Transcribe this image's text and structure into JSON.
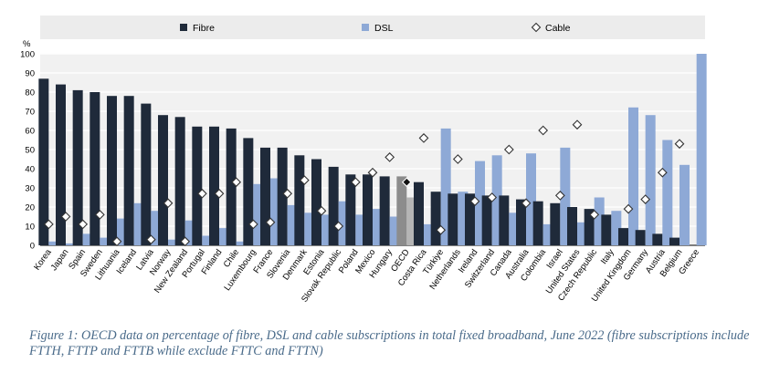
{
  "chart_data": {
    "type": "bar",
    "title": "",
    "y_unit_label": "%",
    "ylim": [
      0,
      100
    ],
    "yticks": [
      0,
      10,
      20,
      30,
      40,
      50,
      60,
      70,
      80,
      90,
      100
    ],
    "grid": "horizontal",
    "legend_position": "top",
    "categories": [
      "Korea",
      "Japan",
      "Spain",
      "Sweden",
      "Lithuania",
      "Iceland",
      "Latvia",
      "Norway",
      "New Zealand",
      "Portugal",
      "Finland",
      "Chile",
      "Luxembourg",
      "France",
      "Slovenia",
      "Denmark",
      "Estonia",
      "Slovak Republic",
      "Poland",
      "Mexico",
      "Hungary",
      "OECD",
      "Costa Rica",
      "Türkiye",
      "Netherlands",
      "Ireland",
      "Switzerland",
      "Canada",
      "Australia",
      "Colombia",
      "Israel",
      "United States",
      "Czech Republic",
      "Italy",
      "United Kingdom",
      "Germany",
      "Austria",
      "Belgium",
      "Greece"
    ],
    "highlight_category": "OECD",
    "series": [
      {
        "name": "Fibre",
        "type": "bar",
        "color": "#1f2a3a",
        "highlight_color": "#8c8c8c",
        "values": [
          87,
          84,
          81,
          80,
          78,
          78,
          74,
          68,
          67,
          62,
          62,
          61,
          56,
          51,
          51,
          47,
          45,
          41,
          37,
          37,
          36,
          36,
          33,
          28,
          27,
          27,
          26,
          26,
          24,
          23,
          22,
          20,
          19,
          16,
          9,
          8,
          6,
          4,
          0
        ]
      },
      {
        "name": "DSL",
        "type": "bar",
        "color": "#8ea9d6",
        "highlight_color": "#b5b5b5",
        "values": [
          2,
          1,
          6,
          4,
          14,
          22,
          18,
          3,
          13,
          5,
          9,
          2,
          32,
          35,
          21,
          17,
          16,
          23,
          16,
          19,
          15,
          25,
          11,
          61,
          28,
          44,
          47,
          17,
          48,
          11,
          51,
          12,
          25,
          18,
          72,
          68,
          55,
          42,
          100
        ]
      },
      {
        "name": "Cable",
        "type": "marker",
        "color": "#ffffff",
        "values": [
          11,
          15,
          11,
          16,
          2,
          null,
          3,
          22,
          2,
          27,
          27,
          33,
          11,
          12,
          27,
          34,
          18,
          10,
          33,
          38,
          46,
          33,
          56,
          8,
          45,
          23,
          25,
          50,
          22,
          60,
          26,
          63,
          16,
          null,
          19,
          24,
          38,
          53,
          null
        ]
      }
    ]
  },
  "caption": "Figure 1: OECD data on percentage of fibre, DSL and cable subscriptions in total fixed broadband, June 2022 (fibre subscriptions include FTTH, FTTP and FTTB while exclude FTTC and FTTN)"
}
